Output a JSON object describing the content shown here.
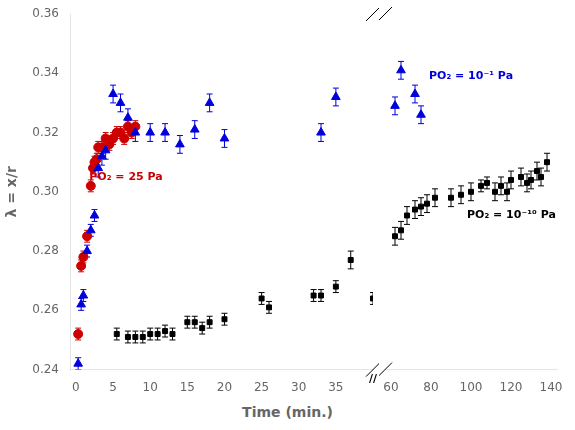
{
  "chart_data": [
    {
      "type": "scatter",
      "ylabel": "λ = x/r",
      "xlabel": "Time (min.)",
      "xlim": [
        -0.8,
        40
      ],
      "xticks": [
        0,
        5,
        10,
        15,
        20,
        25,
        30,
        35
      ],
      "ylim": [
        0.24,
        0.36
      ],
      "yticks": [
        0.24,
        0.26,
        0.28,
        {
          "value": 0.3,
          "label": "0.30"
        },
        0.32,
        0.34,
        0.36
      ],
      "grid": false,
      "series": [
        {
          "color": "#000000",
          "marker": "square",
          "x": [
            5.5,
            7,
            8,
            9,
            10,
            11,
            12,
            13,
            15,
            16,
            17,
            18,
            20,
            25,
            26,
            32,
            33,
            35,
            37,
            40
          ],
          "values": [
            0.252,
            0.251,
            0.251,
            0.251,
            0.252,
            0.252,
            0.253,
            0.252,
            0.256,
            0.256,
            0.254,
            0.256,
            0.257,
            0.264,
            0.261,
            0.265,
            0.265,
            0.268,
            0.277,
            0.264
          ],
          "yerr": [
            0.002,
            0.002,
            0.002,
            0.002,
            0.002,
            0.002,
            0.002,
            0.002,
            0.002,
            0.002,
            0.002,
            0.002,
            0.002,
            0.002,
            0.002,
            0.002,
            0.002,
            0.002,
            0.003,
            0.002
          ]
        },
        {
          "color": "#0000dd",
          "marker": "triangle",
          "x": [
            0.3,
            0.7,
            1.0,
            1.5,
            2.0,
            2.5,
            3.0,
            3.5,
            4.0,
            5.0,
            6.0,
            7.0,
            8.0,
            10.0,
            12.0,
            14.0,
            16.0,
            18.0,
            20.0,
            33.0,
            35.0
          ],
          "values": [
            0.242,
            0.262,
            0.265,
            0.28,
            0.287,
            0.292,
            0.308,
            0.312,
            0.314,
            0.333,
            0.33,
            0.325,
            0.32,
            0.32,
            0.32,
            0.316,
            0.321,
            0.33,
            0.318,
            0.32,
            0.332
          ],
          "yerr": [
            0.002,
            0.002,
            0.002,
            0.002,
            0.002,
            0.002,
            0.003,
            0.003,
            0.003,
            0.003,
            0.003,
            0.003,
            0.003,
            0.003,
            0.003,
            0.003,
            0.003,
            0.003,
            0.003,
            0.003,
            0.003
          ]
        },
        {
          "color": "#cc0000",
          "marker": "circle",
          "x": [
            0.3,
            0.7,
            1.0,
            1.5,
            2.0,
            2.3,
            2.5,
            2.8,
            3.0,
            3.5,
            4.0,
            4.5,
            5.0,
            5.5,
            6.0,
            6.5,
            7.0,
            7.5,
            8.0
          ],
          "values": [
            0.252,
            0.275,
            0.278,
            0.285,
            0.302,
            0.308,
            0.31,
            0.311,
            0.315,
            0.315,
            0.318,
            0.316,
            0.318,
            0.32,
            0.32,
            0.318,
            0.322,
            0.32,
            0.322
          ],
          "yerr": [
            0.002,
            0.002,
            0.002,
            0.002,
            0.002,
            0.002,
            0.002,
            0.002,
            0.002,
            0.002,
            0.002,
            0.002,
            0.002,
            0.002,
            0.002,
            0.002,
            0.002,
            0.002,
            0.002
          ]
        }
      ],
      "annotations": [
        {
          "text": "PO₂ = 25 Pa",
          "x": 1.8,
          "y": 0.304,
          "color": "#cc0000"
        },
        {
          "text": "//",
          "x": 40,
          "y": 0.24,
          "color": "#000000"
        }
      ]
    },
    {
      "type": "scatter",
      "xlim": [
        57,
        143
      ],
      "xticks": [
        60,
        80,
        100,
        120,
        140
      ],
      "ylim": [
        0.24,
        0.36
      ],
      "yticks": [
        0.24,
        0.26,
        0.28,
        {
          "value": 0.3,
          "label": "0.30"
        },
        0.32,
        0.34,
        0.36
      ],
      "tick_labels": "x",
      "grid": false,
      "series": [
        {
          "color": "#000000",
          "marker": "square",
          "x": [
            62,
            65,
            68,
            72,
            75,
            78,
            82,
            90,
            95,
            100,
            105,
            108,
            112,
            115,
            118,
            120,
            125,
            128,
            130,
            133,
            135,
            138
          ],
          "values": [
            0.285,
            0.287,
            0.292,
            0.294,
            0.295,
            0.296,
            0.298,
            0.298,
            0.299,
            0.3,
            0.302,
            0.303,
            0.3,
            0.302,
            0.3,
            0.304,
            0.305,
            0.303,
            0.304,
            0.307,
            0.305,
            0.31
          ],
          "yerr": [
            0.003,
            0.003,
            0.003,
            0.003,
            0.003,
            0.003,
            0.003,
            0.003,
            0.003,
            0.003,
            0.002,
            0.002,
            0.003,
            0.003,
            0.003,
            0.003,
            0.003,
            0.003,
            0.003,
            0.003,
            0.003,
            0.003
          ]
        },
        {
          "color": "#0000dd",
          "marker": "triangle",
          "x": [
            62.0,
            65.0,
            72.0,
            75.0
          ],
          "values": [
            0.329,
            0.341,
            0.333,
            0.326
          ],
          "yerr": [
            0.003,
            0.003,
            0.003,
            0.003
          ]
        }
      ],
      "annotations": [
        {
          "text": "PO₂ = 10⁻¹ Pa",
          "x": 79,
          "y": 0.338,
          "color": "#0000dd"
        },
        {
          "text": "PO₂ = 10⁻¹⁰ Pa",
          "x": 98,
          "y": 0.291,
          "color": "#000000"
        }
      ]
    }
  ]
}
